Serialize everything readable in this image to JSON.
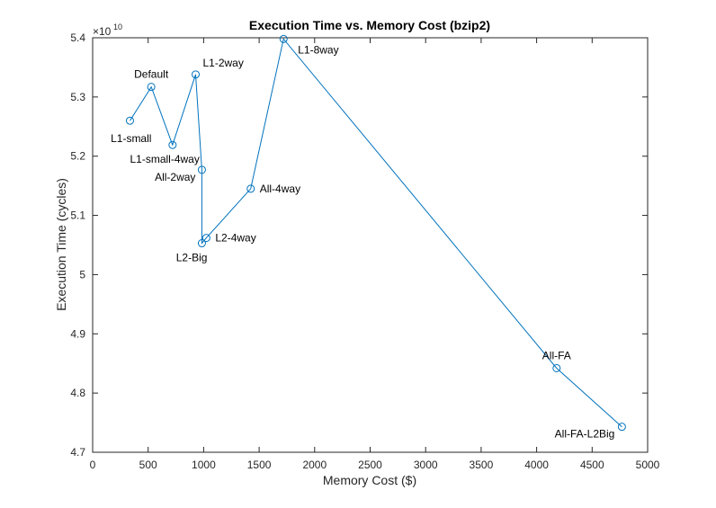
{
  "chart_data": {
    "type": "line",
    "title": "Execution Time vs. Memory Cost (bzip2)",
    "xlabel": "Memory Cost ($)",
    "ylabel": "Execution Time (cycles)",
    "y_exponent_label": "×10",
    "y_exponent_power": "10",
    "xlim": [
      0,
      5000
    ],
    "ylim": [
      4.7,
      5.4
    ],
    "x_ticks": [
      0,
      500,
      1000,
      1500,
      2000,
      2500,
      3000,
      3500,
      4000,
      4500,
      5000
    ],
    "y_ticks": [
      4.7,
      4.8,
      4.9,
      5.0,
      5.1,
      5.2,
      5.3,
      5.4
    ],
    "x_tick_labels": [
      "0",
      "500",
      "1000",
      "1500",
      "2000",
      "2500",
      "3000",
      "3500",
      "4000",
      "4500",
      "5000"
    ],
    "y_tick_labels": [
      "4.7",
      "4.8",
      "4.9",
      "5",
      "5.1",
      "5.2",
      "5.3",
      "5.4"
    ],
    "grid": false,
    "line_color": "#0072BD",
    "marker": "circle",
    "points": [
      {
        "label": "L1-small",
        "x": 336,
        "y": 5.26,
        "label_pos": "below-left"
      },
      {
        "label": "Default",
        "x": 528,
        "y": 5.317,
        "label_pos": "above"
      },
      {
        "label": "L1-small-4way",
        "x": 720,
        "y": 5.219,
        "label_pos": "below-left"
      },
      {
        "label": "L1-2way",
        "x": 928,
        "y": 5.338,
        "label_pos": "above-right"
      },
      {
        "label": "All-2way",
        "x": 984,
        "y": 5.177,
        "label_pos": "below-left"
      },
      {
        "label": "L2-Big",
        "x": 984,
        "y": 5.053,
        "label_pos": "below-left"
      },
      {
        "label": "L2-4way",
        "x": 1024,
        "y": 5.062,
        "label_pos": "right"
      },
      {
        "label": "All-4way",
        "x": 1424,
        "y": 5.145,
        "label_pos": "right"
      },
      {
        "label": "L1-8way",
        "x": 1720,
        "y": 5.398,
        "label_pos": "below-right"
      },
      {
        "label": "All-FA",
        "x": 4180,
        "y": 4.842,
        "label_pos": "above"
      },
      {
        "label": "All-FA-L2Big",
        "x": 4768,
        "y": 4.743,
        "label_pos": "left"
      }
    ]
  }
}
